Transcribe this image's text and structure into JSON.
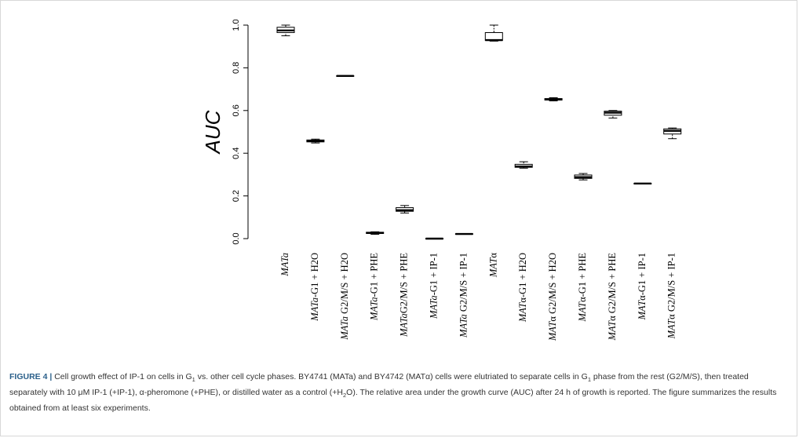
{
  "figure": {
    "label": "FIGURE 4 |",
    "caption_parts": [
      " Cell growth effect of IP-1 on cells in G",
      "1",
      " vs. other cell cycle phases. BY4741 (MATa) and BY4742 (MATα) cells were elutriated to separate cells in G",
      "1",
      " phase from the rest (G2/M/S), then treated separately with 10 μM IP-1 (+IP-1), α-pheromone (+PHE), or distilled water as a control (+H",
      "2",
      "O). The relative area under the growth curve (AUC) after 24 h of growth is reported. The figure summarizes the results obtained from at least six experiments."
    ]
  },
  "chart_data": {
    "type": "boxplot",
    "ylabel": "AUC",
    "xlabel": "",
    "ylim": [
      0.0,
      1.0
    ],
    "yticks": [
      "0.0",
      "0.2",
      "0.4",
      "0.6",
      "0.8",
      "1.0"
    ],
    "grid": false,
    "categories": [
      "MATa",
      "MATa-G1 + H2O",
      "MATa G2/M/S + H2O",
      "MATa-G1 + PHE",
      "MATaG2/M/S + PHE",
      "MATa-G1 + IP-1",
      "MATa G2/M/S + IP-1",
      "MATα",
      "MATα-G1 + H2O",
      "MATα G2/M/S + H2O",
      "MATα-G1 + PHE",
      "MATα G2/M/S + PHE",
      "MATα-G1 + IP-1",
      "MATα G2/M/S + IP-1"
    ],
    "boxes": [
      {
        "min": 0.95,
        "q1": 0.965,
        "median": 0.975,
        "q3": 0.99,
        "max": 1.0
      },
      {
        "min": 0.448,
        "q1": 0.453,
        "median": 0.458,
        "q3": 0.462,
        "max": 0.466
      },
      {
        "min": 0.762,
        "q1": 0.762,
        "median": 0.762,
        "q3": 0.763,
        "max": 0.763
      },
      {
        "min": 0.02,
        "q1": 0.024,
        "median": 0.027,
        "q3": 0.03,
        "max": 0.032
      },
      {
        "min": 0.12,
        "q1": 0.128,
        "median": 0.133,
        "q3": 0.145,
        "max": 0.155
      },
      {
        "min": 0.0,
        "q1": 0.0,
        "median": 0.0,
        "q3": 0.001,
        "max": 0.001
      },
      {
        "min": 0.022,
        "q1": 0.022,
        "median": 0.022,
        "q3": 0.023,
        "max": 0.023
      },
      {
        "min": 0.925,
        "q1": 0.928,
        "median": 0.93,
        "q3": 0.965,
        "max": 1.0
      },
      {
        "min": 0.33,
        "q1": 0.334,
        "median": 0.338,
        "q3": 0.348,
        "max": 0.36
      },
      {
        "min": 0.645,
        "q1": 0.649,
        "median": 0.652,
        "q3": 0.656,
        "max": 0.66
      },
      {
        "min": 0.275,
        "q1": 0.282,
        "median": 0.288,
        "q3": 0.298,
        "max": 0.305
      },
      {
        "min": 0.565,
        "q1": 0.578,
        "median": 0.59,
        "q3": 0.597,
        "max": 0.6
      },
      {
        "min": 0.258,
        "q1": 0.258,
        "median": 0.258,
        "q3": 0.259,
        "max": 0.259
      },
      {
        "min": 0.468,
        "q1": 0.49,
        "median": 0.505,
        "q3": 0.514,
        "max": 0.518
      }
    ]
  }
}
